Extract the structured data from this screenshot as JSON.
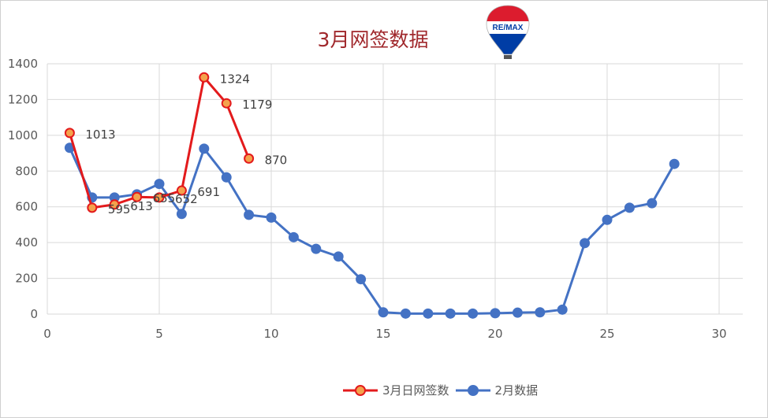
{
  "chart_data": {
    "type": "line",
    "title": "3月网签数据",
    "xlim": [
      0,
      30
    ],
    "ylim": [
      0,
      1400
    ],
    "x_ticks": [
      0,
      5,
      10,
      15,
      20,
      25,
      30
    ],
    "y_ticks": [
      0,
      200,
      400,
      600,
      800,
      1000,
      1200,
      1400
    ],
    "grid": true,
    "legend_position": "bottom",
    "series": [
      {
        "name": "3月日网签数",
        "color": "#e31a1c",
        "marker_fill": "#f4a24c",
        "x": [
          1,
          2,
          3,
          4,
          5,
          6,
          7,
          8,
          9
        ],
        "y": [
          1013,
          595,
          613,
          655,
          652,
          691,
          1324,
          1179,
          870
        ],
        "data_labels": [
          "1013",
          "595",
          "613",
          "655",
          "652",
          "691",
          "1324",
          "1179",
          "870"
        ]
      },
      {
        "name": "2月数据",
        "color": "#4472c4",
        "marker_fill": "#4472c4",
        "x": [
          1,
          2,
          3,
          4,
          5,
          6,
          7,
          8,
          9,
          10,
          11,
          12,
          13,
          14,
          15,
          16,
          17,
          18,
          19,
          20,
          21,
          22,
          23,
          24,
          25,
          26,
          27,
          28
        ],
        "y": [
          930,
          652,
          652,
          670,
          728,
          560,
          925,
          765,
          555,
          540,
          430,
          365,
          322,
          195,
          10,
          3,
          3,
          3,
          3,
          5,
          8,
          10,
          25,
          397,
          527,
          595,
          620,
          840
        ]
      }
    ]
  },
  "logo": {
    "text": "RE/MAX",
    "colors": [
      "#dc1c2e",
      "#ffffff",
      "#003da5"
    ]
  }
}
